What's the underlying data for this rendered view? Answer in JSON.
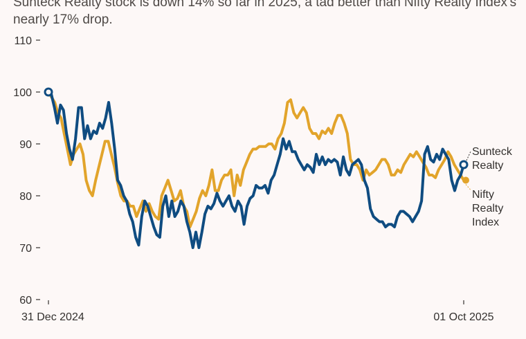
{
  "chart_data": {
    "type": "line",
    "subtitle": "Sunteck Realty stock is down 14% so far in 2025, a tad better than Nifty Realty Index's nearly 17% drop.",
    "title": "",
    "xlabel": "",
    "ylabel": "",
    "ylim": [
      60,
      110
    ],
    "yticks": [
      60,
      70,
      80,
      90,
      100,
      110
    ],
    "xticks": [
      "31 Dec 2024",
      "01 Oct 2025"
    ],
    "grid": false,
    "legend": "direct labels at right end of lines",
    "series": [
      {
        "name": "Sunteck Realty",
        "label_lines": [
          "Sunteck",
          "Realty"
        ],
        "color": "#0f4c81",
        "values": [
          100,
          99.5,
          97,
          94,
          97.5,
          96.5,
          92,
          89,
          87,
          91,
          97,
          97,
          91,
          93.5,
          91,
          92.5,
          92,
          94,
          93,
          95,
          98,
          94,
          89,
          83,
          82,
          80,
          79,
          76.5,
          75,
          72,
          70.5,
          76,
          79,
          78,
          76,
          74,
          72.5,
          72,
          78,
          80,
          76,
          79,
          76,
          77,
          79,
          78,
          75,
          73,
          70,
          73,
          70,
          73,
          76.5,
          78,
          77.5,
          78.5,
          80.5,
          79,
          78,
          79,
          80,
          78,
          77,
          79,
          78,
          74.5,
          78,
          79.5,
          80,
          82,
          81.5,
          81.5,
          82,
          80.5,
          83,
          84,
          86,
          88,
          91,
          89,
          90.5,
          88.5,
          88.5,
          87,
          86,
          85,
          86,
          85.5,
          84.5,
          88,
          86,
          87.5,
          86,
          87,
          86.5,
          87,
          86.5,
          84,
          87.5,
          85,
          84,
          86,
          86.5,
          87,
          86,
          83,
          81.5,
          77.5,
          76,
          75.5,
          75,
          75,
          74,
          74.5,
          74.5,
          74,
          76,
          77,
          77,
          76.5,
          76,
          75,
          76,
          77,
          79,
          88,
          89.5,
          87,
          86.5,
          88,
          87,
          89,
          88,
          87,
          83,
          81,
          83,
          84,
          86
        ]
      },
      {
        "name": "Nifty Realty Index",
        "label_lines": [
          "Nifty",
          "Realty",
          "Index"
        ],
        "color": "#e2a42b",
        "values": [
          100,
          99,
          98,
          96,
          95,
          92,
          89,
          86,
          88,
          89,
          90,
          88,
          83,
          81,
          80,
          83,
          85.5,
          88,
          90.5,
          90.5,
          88,
          85.5,
          82.5,
          80,
          79,
          79,
          78,
          78,
          76,
          77.5,
          79,
          77,
          78.5,
          77,
          76,
          75.5,
          80,
          81.5,
          83,
          81,
          79,
          79.5,
          81,
          78,
          77,
          74,
          75.5,
          77,
          79.5,
          81,
          80,
          82,
          85,
          81,
          81,
          83,
          84,
          84,
          85,
          80,
          84,
          82,
          85,
          86.5,
          88,
          89,
          89,
          89.5,
          89.5,
          89.5,
          90,
          90,
          89,
          91,
          92,
          94,
          98,
          98.5,
          96,
          95,
          96,
          97,
          96,
          93,
          92,
          92,
          91,
          92.5,
          92,
          93,
          92,
          94,
          95.5,
          95.5,
          94,
          92,
          87,
          86,
          86,
          85,
          83,
          85,
          84,
          84.5,
          85,
          86,
          87,
          87,
          86,
          84,
          84,
          85,
          84.5,
          86,
          87,
          88,
          87.5,
          88.5,
          87.5,
          86.5,
          85.5,
          84,
          84,
          83.5,
          85,
          86,
          87,
          88.5,
          87.5,
          86,
          85,
          84,
          83
        ]
      }
    ]
  }
}
